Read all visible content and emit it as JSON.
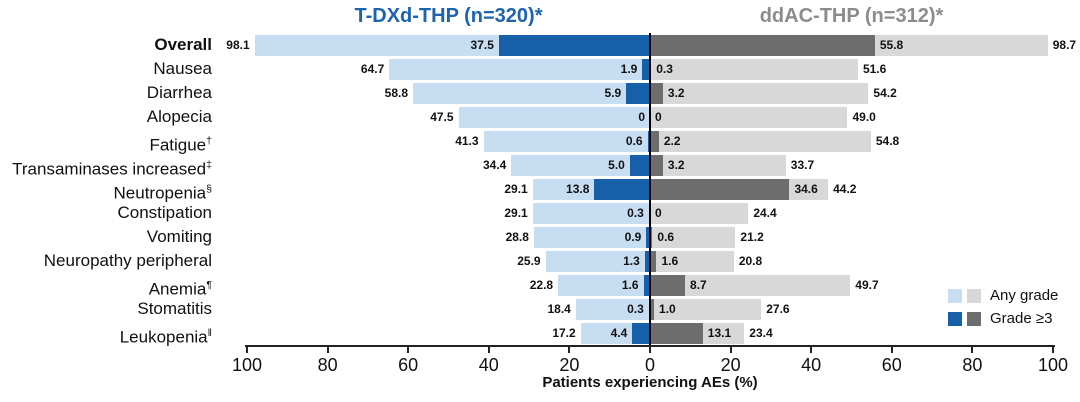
{
  "figure": {
    "left_group_title": "T-DXd-THP (n=320)*",
    "right_group_title": "ddAC-THP (n=312)*"
  },
  "legend": {
    "any_grade_label": "Any grade",
    "grade3_label": "Grade ≥3"
  },
  "colors": {
    "left_any": "#c7ddf2",
    "left_grade3": "#1560a8",
    "right_any": "#d8d8d8",
    "right_grade3": "#6d6d6d",
    "left_title": "#1c63b0",
    "right_title": "#8c8c8c",
    "axis": "#222222",
    "text": "#111111"
  },
  "chart_data": {
    "type": "bar",
    "variant": "diverging-tornado",
    "title_left": "T-DXd-THP (n=320)*",
    "title_right": "ddAC-THP (n=312)*",
    "xlabel": "Patients experiencing AEs (%)",
    "x_ticks": [
      100,
      80,
      60,
      40,
      20,
      0,
      20,
      40,
      60,
      80,
      100
    ],
    "xlim_each_side": [
      0,
      100
    ],
    "grid": false,
    "legend_position": "right-bottom",
    "categories": [
      "Overall",
      "Nausea",
      "Diarrhea",
      "Alopecia",
      "Fatigue",
      "Transaminases increased",
      "Neutropenia",
      "Constipation",
      "Vomiting",
      "Neuropathy peripheral",
      "Anemia",
      "Stomatitis",
      "Leukopenia"
    ],
    "category_superscripts": [
      "",
      "",
      "",
      "",
      "†",
      "‡",
      "§",
      "",
      "",
      "",
      "¶",
      "",
      "‖"
    ],
    "category_bold": [
      true,
      false,
      false,
      false,
      false,
      false,
      false,
      false,
      false,
      false,
      false,
      false,
      false
    ],
    "series": [
      {
        "name": "T-DXd-THP Any grade",
        "side": "left",
        "grade": "any",
        "values": [
          98.1,
          64.7,
          58.8,
          47.5,
          41.3,
          34.4,
          29.1,
          29.1,
          28.8,
          25.9,
          22.8,
          18.4,
          17.2
        ],
        "labels": [
          "98.1",
          "64.7",
          "58.8",
          "47.5",
          "41.3",
          "34.4",
          "29.1",
          "29.1",
          "28.8",
          "25.9",
          "22.8",
          "18.4",
          "17.2"
        ]
      },
      {
        "name": "T-DXd-THP Grade ≥3",
        "side": "left",
        "grade": "g3",
        "values": [
          37.5,
          1.9,
          5.9,
          0,
          0.6,
          5.0,
          13.8,
          0.3,
          0.9,
          1.3,
          1.6,
          0.3,
          4.4
        ],
        "labels": [
          "37.5",
          "1.9",
          "5.9",
          "0",
          "0.6",
          "5.0",
          "13.8",
          "0.3",
          "0.9",
          "1.3",
          "1.6",
          "0.3",
          "4.4"
        ]
      },
      {
        "name": "ddAC-THP Grade ≥3",
        "side": "right",
        "grade": "g3",
        "values": [
          55.8,
          0.3,
          3.2,
          0,
          2.2,
          3.2,
          34.6,
          0,
          0.6,
          1.6,
          8.7,
          1.0,
          13.1
        ],
        "labels": [
          "55.8",
          "0.3",
          "3.2",
          "0",
          "2.2",
          "3.2",
          "34.6",
          "0",
          "0.6",
          "1.6",
          "8.7",
          "1.0",
          "13.1"
        ]
      },
      {
        "name": "ddAC-THP Any grade",
        "side": "right",
        "grade": "any",
        "values": [
          98.7,
          51.6,
          54.2,
          49.0,
          54.8,
          33.7,
          44.2,
          24.4,
          21.2,
          20.8,
          49.7,
          27.6,
          23.4
        ],
        "labels": [
          "98.7",
          "51.6",
          "54.2",
          "49.0",
          "54.8",
          "33.7",
          "44.2",
          "24.4",
          "21.2",
          "20.8",
          "49.7",
          "27.6",
          "23.4"
        ]
      }
    ]
  }
}
